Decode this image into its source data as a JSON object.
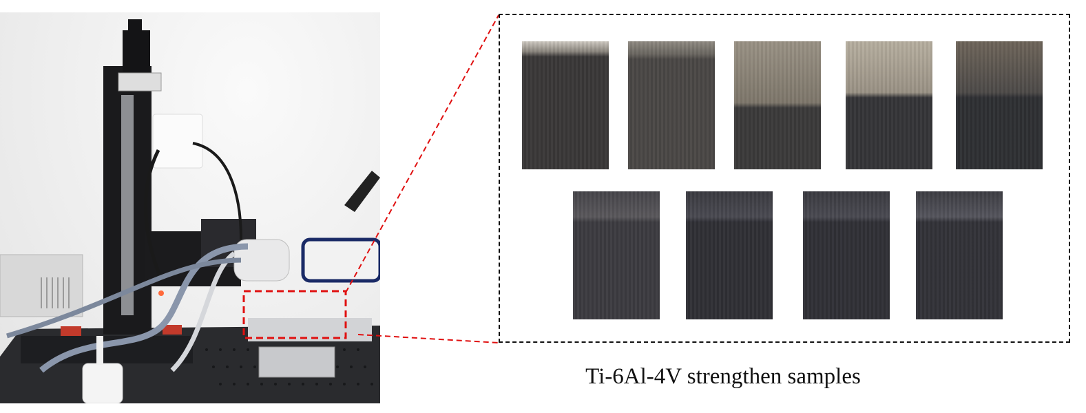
{
  "figure": {
    "caption": "Ti-6Al-4V strengthen samples",
    "highlight_color": "#e01010",
    "zoom_border_color": "#111111"
  },
  "samples": {
    "row1": [
      {
        "top_tone": "#cfcac2",
        "body_tone": "#3a3838",
        "band": "#8a857d"
      },
      {
        "top_tone": "#8f8a82",
        "body_tone": "#4a4745",
        "band": "#6a6660"
      },
      {
        "top_tone": "#9a9285",
        "body_tone": "#3b3a3a",
        "band": "#7e776b"
      },
      {
        "top_tone": "#b7afa0",
        "body_tone": "#353538",
        "band": "#9a9285"
      },
      {
        "top_tone": "#6e655a",
        "body_tone": "#2e2f33",
        "band": "#4d4a48"
      }
    ],
    "row2": [
      {
        "top_tone": "#46454a",
        "body_tone": "#3c3b40",
        "band": "#5a585c"
      },
      {
        "top_tone": "#3a3a40",
        "body_tone": "#2f2f35",
        "band": "#4a4a52"
      },
      {
        "top_tone": "#3a3a40",
        "body_tone": "#303036",
        "band": "#4a4a52"
      },
      {
        "top_tone": "#3d3d43",
        "body_tone": "#323238",
        "band": "#55555d"
      }
    ]
  }
}
